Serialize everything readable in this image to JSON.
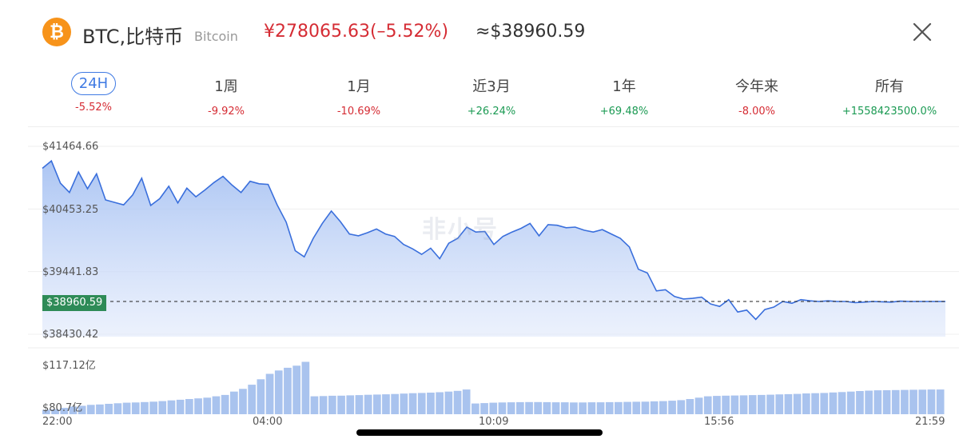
{
  "header": {
    "coin_icon": "bitcoin-icon",
    "coin_symbol": "₿",
    "coin_name": "BTC,比特币",
    "coin_subname": "Bitcoin",
    "price_cny": "¥278065.63(–5.52%)",
    "price_usd": "≈$38960.59",
    "close_icon": "close-icon"
  },
  "tabs": [
    {
      "label": "24H",
      "change": "-5.52%",
      "trend": "neg",
      "active": true
    },
    {
      "label": "1周",
      "change": "-9.92%",
      "trend": "neg",
      "active": false
    },
    {
      "label": "1月",
      "change": "-10.69%",
      "trend": "neg",
      "active": false
    },
    {
      "label": "近3月",
      "change": "+26.24%",
      "trend": "pos",
      "active": false
    },
    {
      "label": "1年",
      "change": "+69.48%",
      "trend": "pos",
      "active": false
    },
    {
      "label": "今年来",
      "change": "-8.00%",
      "trend": "neg",
      "active": false
    },
    {
      "label": "所有",
      "change": "+1558423500.0%",
      "trend": "pos",
      "active": false
    }
  ],
  "watermark": "非小号",
  "colors": {
    "accent_blue": "#3f7ae3",
    "negative_red": "#d52c34",
    "positive_green": "#1b9a53",
    "current_tag": "#2e8b57",
    "coin_orange": "#f7931a"
  },
  "chart_data": [
    {
      "type": "area",
      "y_ticks": [
        "$41464.66",
        "$40453.25",
        "$39441.83",
        "$38430.42"
      ],
      "ylim": [
        38430.42,
        41464.66
      ],
      "current_value": 38960.59,
      "current_label": "$38960.59",
      "x_ticks": [
        "22:00",
        "04:00",
        "10:09",
        "15:56",
        "21:59"
      ],
      "x": [
        0,
        1,
        2,
        3,
        4,
        5,
        6,
        7,
        8,
        9,
        10,
        11,
        12,
        13,
        14,
        15,
        16,
        17,
        18,
        19,
        20,
        21,
        22,
        23,
        24,
        25,
        26,
        27,
        28,
        29,
        30,
        31,
        32,
        33,
        34,
        35,
        36,
        37,
        38,
        39,
        40,
        41,
        42,
        43,
        44,
        45,
        46,
        47,
        48,
        49,
        50,
        51,
        52,
        53,
        54,
        55,
        56,
        57,
        58,
        59,
        60,
        61,
        62,
        63,
        64,
        65,
        66,
        67,
        68,
        69,
        70,
        71,
        72,
        73,
        74,
        75,
        76,
        77,
        78,
        79,
        80,
        81,
        82,
        83,
        84,
        85,
        86,
        87,
        88,
        89,
        90,
        91,
        92,
        93,
        94,
        95,
        96,
        97,
        98,
        99,
        100
      ],
      "values": [
        41110,
        41230,
        40870,
        40720,
        41050,
        40780,
        41020,
        40600,
        40560,
        40520,
        40680,
        40950,
        40510,
        40620,
        40820,
        40550,
        40790,
        40650,
        40760,
        40880,
        40980,
        40840,
        40720,
        40900,
        40860,
        40850,
        40520,
        40240,
        39780,
        39680,
        39980,
        40220,
        40420,
        40250,
        40050,
        40020,
        40070,
        40130,
        40050,
        40010,
        39880,
        39810,
        39720,
        39820,
        39650,
        39900,
        39980,
        40160,
        40080,
        40090,
        39880,
        40010,
        40080,
        40140,
        40220,
        40020,
        40200,
        40190,
        40150,
        40160,
        40110,
        40080,
        40120,
        40050,
        39980,
        39840,
        39480,
        39420,
        39130,
        39150,
        39040,
        39000,
        39010,
        39030,
        38920,
        38880,
        38990,
        38790,
        38820,
        38670,
        38830,
        38870,
        38960,
        38930,
        38990,
        38970,
        38960,
        38970,
        38960,
        38960,
        38940,
        38950,
        38960,
        38955,
        38950,
        38965,
        38960,
        38960,
        38960,
        38960,
        38960
      ],
      "volume_ticks": [
        "$117.12亿",
        "$80.7亿"
      ],
      "volume_ylim": [
        80.7,
        117.12
      ],
      "volume": [
        81.6,
        82.0,
        83.0,
        84.0,
        84.5,
        85.2,
        85.5,
        86.0,
        86.4,
        86.8,
        87.0,
        87.3,
        87.6,
        88.0,
        88.5,
        89.0,
        89.5,
        90.0,
        90.5,
        91.5,
        92.5,
        95.0,
        97.0,
        100.0,
        104.0,
        108.0,
        110.5,
        112.5,
        114.0,
        116.8,
        91.5,
        91.7,
        91.9,
        92.0,
        92.2,
        92.4,
        92.6,
        92.8,
        93.0,
        93.2,
        93.5,
        93.8,
        94.0,
        94.2,
        94.5,
        95.0,
        95.5,
        96.5,
        86.2,
        86.5,
        86.8,
        87.0,
        87.1,
        87.2,
        87.3,
        87.3,
        87.2,
        87.1,
        87.1,
        87.0,
        87.0,
        87.1,
        87.1,
        87.2,
        87.3,
        87.4,
        87.5,
        87.6,
        87.8,
        88.0,
        88.3,
        88.7,
        89.5,
        90.5,
        91.5,
        91.8,
        92.0,
        92.1,
        92.2,
        92.4,
        92.5,
        92.7,
        92.9,
        93.1,
        93.3,
        93.6,
        93.8,
        94.0,
        94.3,
        94.6,
        95.0,
        95.4,
        95.7,
        95.9,
        96.0,
        96.1,
        96.2,
        96.3,
        96.4,
        96.5,
        96.5
      ]
    }
  ]
}
